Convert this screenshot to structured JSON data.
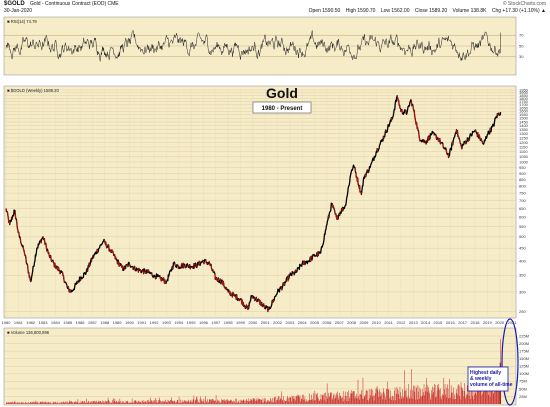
{
  "header": {
    "symbol": "$GOLD",
    "description": "Gold - Continuous Contract (EOD)  CME",
    "date": "30-Jan-2020",
    "credit": "© StockCharts.com",
    "open": "Open 1590.50",
    "high": "High 1590.70",
    "low": "Low 1562.00",
    "close": "Close 1589.20",
    "volume": "Volume 138.8K",
    "chg": "Chg +17.30 (+1.10%) ▲"
  },
  "rsi_panel": {
    "legend": "■ RSI(14) 74.79",
    "ticks": [
      "70",
      "50",
      "30"
    ]
  },
  "price_panel": {
    "legend": "■ $GOLD (Weekly) 1589.20",
    "title": "Gold",
    "subtitle": "1980 - Present",
    "ticks": [
      "1950",
      "1900",
      "1850",
      "1800",
      "1750",
      "1700",
      "1650",
      "1600",
      "1550",
      "1500",
      "1450",
      "1400",
      "1350",
      "1300",
      "1250",
      "1200",
      "1150",
      "1100",
      "1050",
      "1000",
      "950",
      "900",
      "850",
      "800",
      "750",
      "700",
      "650",
      "600",
      "550",
      "500",
      "450",
      "400",
      "350",
      "300",
      "250"
    ]
  },
  "volume_panel": {
    "legend": "■ Volume 136,800,896",
    "ticks": [
      "225M",
      "200M",
      "175M",
      "150M",
      "125M",
      "100M",
      "75M",
      "50M",
      "25M"
    ],
    "annotation": "Highest daily & weekly volume of all-time"
  },
  "x_axis": {
    "years": [
      "1980",
      "1981",
      "1982",
      "1983",
      "1984",
      "1985",
      "1986",
      "1987",
      "1988",
      "1989",
      "1990",
      "1991",
      "1992",
      "1993",
      "1994",
      "1995",
      "1996",
      "1997",
      "1998",
      "1999",
      "2000",
      "2001",
      "2002",
      "2003",
      "2004",
      "2005",
      "2006",
      "2007",
      "2008",
      "2009",
      "2010",
      "2011",
      "2012",
      "2013",
      "2014",
      "2015",
      "2016",
      "2017",
      "2018",
      "2019",
      "2020",
      "2021"
    ]
  },
  "colors": {
    "panel_bg": "#f6ecc8",
    "price_line": "#000000",
    "down_color": "#cc1111",
    "volume_bar": "#cc3333",
    "annotation_border": "#1a1aaa",
    "annotation_text": "#1a1aaa",
    "rsi_line": "#222222"
  },
  "chart_data": [
    {
      "type": "line",
      "title": "Gold",
      "subtitle": "1980 - Present",
      "scale": "log",
      "ylim": [
        240,
        1950
      ],
      "x": [
        1980.0,
        1980.3,
        1980.7,
        1981.0,
        1981.5,
        1982.0,
        1982.5,
        1983.0,
        1983.5,
        1984.0,
        1984.5,
        1985.0,
        1985.3,
        1986.0,
        1986.5,
        1987.0,
        1987.9,
        1988.5,
        1989.0,
        1989.5,
        1990.0,
        1990.5,
        1991.0,
        1991.5,
        1992.0,
        1992.5,
        1993.0,
        1993.6,
        1994.0,
        1994.5,
        1995.0,
        1995.5,
        1996.0,
        1996.5,
        1997.0,
        1997.5,
        1998.0,
        1998.5,
        1999.0,
        1999.6,
        1999.9,
        2000.5,
        2001.0,
        2001.3,
        2002.0,
        2002.5,
        2003.0,
        2003.5,
        2004.0,
        2004.5,
        2005.0,
        2005.5,
        2006.0,
        2006.4,
        2006.8,
        2007.0,
        2007.5,
        2008.0,
        2008.2,
        2008.8,
        2009.0,
        2009.5,
        2010.0,
        2010.5,
        2011.0,
        2011.3,
        2011.7,
        2012.0,
        2012.5,
        2012.8,
        2013.0,
        2013.5,
        2014.0,
        2014.5,
        2015.0,
        2015.9,
        2016.5,
        2016.9,
        2017.5,
        2018.0,
        2018.7,
        2019.0,
        2019.5,
        2019.7,
        2020.08
      ],
      "y": [
        650,
        560,
        640,
        520,
        430,
        330,
        450,
        500,
        420,
        380,
        360,
        310,
        300,
        340,
        360,
        410,
        480,
        440,
        400,
        370,
        390,
        370,
        365,
        360,
        350,
        340,
        330,
        390,
        380,
        385,
        380,
        385,
        400,
        390,
        340,
        330,
        300,
        290,
        280,
        255,
        290,
        275,
        260,
        255,
        300,
        320,
        350,
        360,
        390,
        400,
        420,
        430,
        560,
        680,
        590,
        620,
        670,
        930,
        960,
        740,
        870,
        950,
        1100,
        1230,
        1400,
        1500,
        1850,
        1600,
        1580,
        1780,
        1650,
        1250,
        1200,
        1300,
        1250,
        1060,
        1350,
        1150,
        1250,
        1340,
        1180,
        1290,
        1400,
        1520,
        1589
      ]
    },
    {
      "type": "line",
      "title": "RSI(14)",
      "ylim": [
        0,
        100
      ],
      "gridlines": [
        30,
        50,
        70
      ],
      "last_value": 74.79
    },
    {
      "type": "bar",
      "title": "Volume",
      "ylim": [
        0,
        225
      ],
      "unit": "M",
      "last_value": 136.8
    }
  ]
}
